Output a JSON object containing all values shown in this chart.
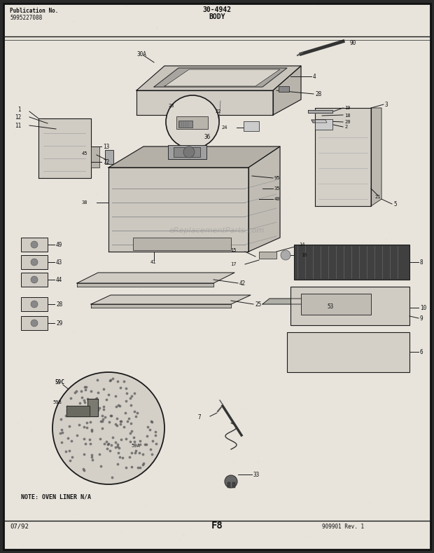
{
  "bg_color": "#2a2a2a",
  "paper_color": "#e8e4dc",
  "border_color": "#111111",
  "title_line1": "30-4942",
  "title_line2": "BODY",
  "pub_no_label": "Publication No.",
  "pub_no_value": "5995227088",
  "page_label": "F8",
  "date_label": "07/92",
  "note_text": "NOTE: OVEN LINER N/A",
  "revision_text": "909901 Rev. 1",
  "watermark": "eReplacementParts.com",
  "fig_width": 6.2,
  "fig_height": 7.89,
  "line_color": "#1a1a1a",
  "fill_light": "#d8d4cc",
  "fill_mid": "#b8b4ac",
  "fill_dark": "#404040"
}
